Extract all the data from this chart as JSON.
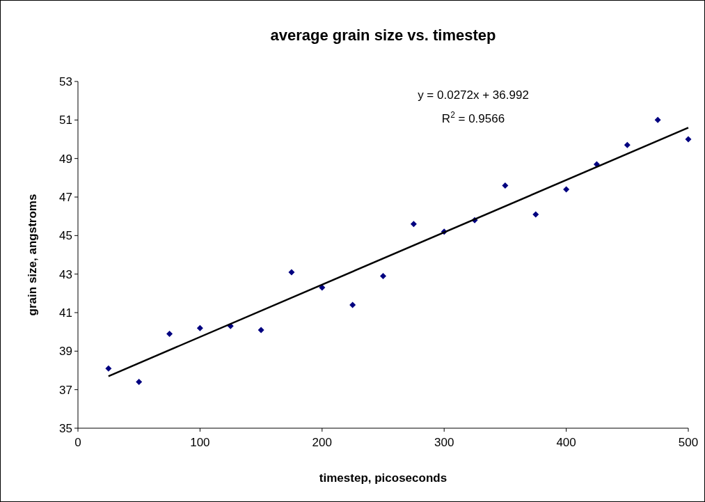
{
  "chart_data": {
    "type": "scatter",
    "title": "average grain size vs. timestep",
    "xlabel": "timestep, picoseconds",
    "ylabel": "grain size, angstroms",
    "x": [
      25,
      50,
      75,
      100,
      125,
      150,
      175,
      200,
      225,
      250,
      275,
      300,
      325,
      350,
      375,
      400,
      425,
      450,
      475,
      500
    ],
    "series": [
      {
        "color": "#000080",
        "marker": "diamond",
        "values": [
          38.1,
          37.4,
          39.9,
          40.2,
          40.3,
          40.1,
          43.1,
          42.3,
          41.4,
          42.9,
          45.6,
          45.2,
          45.8,
          47.6,
          46.1,
          47.4,
          48.7,
          49.7,
          51.0,
          50.0
        ]
      },
      {
        "type": "line",
        "color": "#000000",
        "marker": "none",
        "line_style": "solid",
        "x": [
          25,
          500
        ],
        "values": [
          37.7,
          50.6
        ]
      }
    ],
    "annotations": [
      "y = 0.0272x + 36.992",
      "R$^{2}$ = 0.9566"
    ],
    "xlim": [
      0,
      500
    ],
    "xticks": [
      0,
      100,
      200,
      300,
      400,
      500
    ],
    "ylim": [
      35,
      53
    ],
    "yticks": [
      35,
      37,
      39,
      41,
      43,
      45,
      47,
      49,
      51,
      53
    ],
    "grid": false
  }
}
